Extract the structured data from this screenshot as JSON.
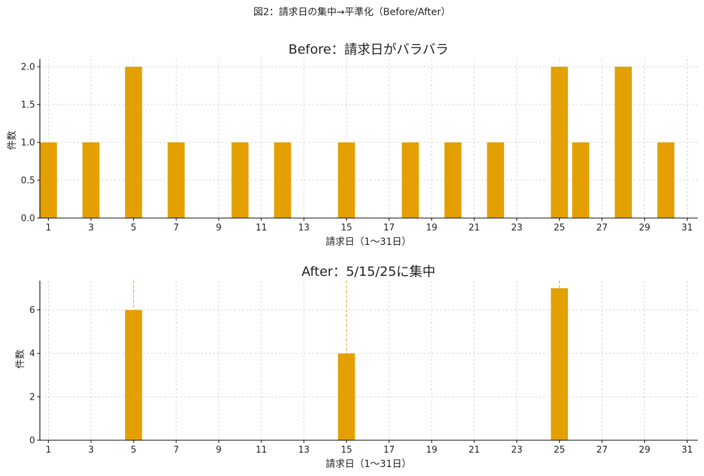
{
  "suptitle": "図2：請求日の集中→平準化（Before/After）",
  "colors": {
    "bar": "#E3A000"
  },
  "chart_data": [
    {
      "type": "bar",
      "title": "Before：請求日がバラバラ",
      "xlabel": "請求日（1〜31日）",
      "ylabel": "件数",
      "x": [
        1,
        3,
        5,
        7,
        10,
        12,
        15,
        18,
        20,
        22,
        25,
        26,
        28,
        30
      ],
      "values": [
        1,
        1,
        2,
        1,
        1,
        1,
        1,
        1,
        1,
        1,
        2,
        1,
        2,
        1
      ],
      "xlim": [
        0.6,
        31.5
      ],
      "ylim": [
        0,
        2.1
      ],
      "xticks": [
        "1",
        "3",
        "5",
        "7",
        "9",
        "11",
        "13",
        "15",
        "17",
        "19",
        "21",
        "23",
        "25",
        "27",
        "29",
        "31"
      ],
      "yticks": [
        "0.0",
        "0.5",
        "1.0",
        "1.5",
        "2.0"
      ],
      "grid": true
    },
    {
      "type": "bar",
      "title": "After：5/15/25に集中",
      "xlabel": "請求日（1〜31日）",
      "ylabel": "件数",
      "x": [
        5,
        15,
        25
      ],
      "values": [
        6,
        4,
        7
      ],
      "reference_lines_x": [
        5,
        15,
        25
      ],
      "xlim": [
        0.6,
        31.5
      ],
      "ylim": [
        0,
        7.35
      ],
      "xticks": [
        "1",
        "3",
        "5",
        "7",
        "9",
        "11",
        "13",
        "15",
        "17",
        "19",
        "21",
        "23",
        "25",
        "27",
        "29",
        "31"
      ],
      "yticks": [
        "0",
        "2",
        "4",
        "6"
      ],
      "grid": true
    }
  ]
}
